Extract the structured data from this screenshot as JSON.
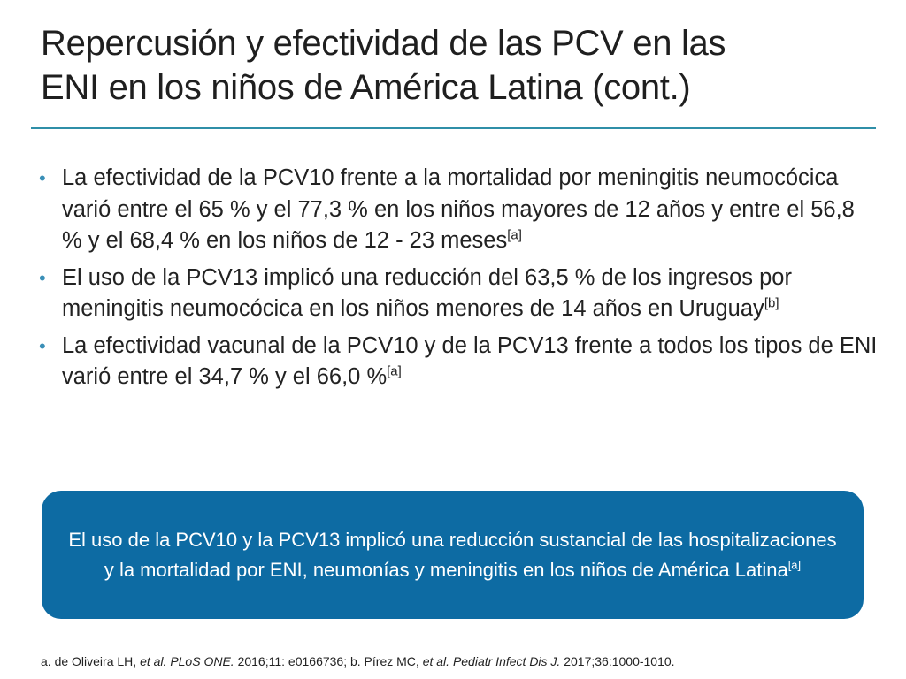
{
  "title": {
    "line1": "Repercusión y efectividad de las PCV en las",
    "line2": "ENI en los niños de América Latina (cont.)"
  },
  "bullet_marker": "•",
  "bullets": [
    {
      "text": "La efectividad de la PCV10 frente a la mortalidad por meningitis neumocócica varió entre el 65 % y el 77,3 % en los niños mayores de 12 años y entre el 56,8 % y el 68,4 % en los niños de 12 - 23 meses",
      "ref": "[a]"
    },
    {
      "text": "El uso de la PCV13 implicó una reducción del 63,5 % de los ingresos por meningitis neumocócica en los niños menores de 14 años en Uruguay",
      "ref": "[b]"
    },
    {
      "text": "La efectividad vacunal de la PCV10 y de la PCV13 frente a todos los tipos de ENI varió entre el 34,7 % y el 66,0 %",
      "ref": "[a]"
    }
  ],
  "callout": {
    "text": "El uso de la PCV10 y la PCV13 implicó una reducción sustancial de las hospitalizaciones y la mortalidad por ENI, neumonías y meningitis en los niños de América Latina",
    "ref": "[a]"
  },
  "references": {
    "a_prefix": "a. de Oliveira LH, ",
    "a_etal": "et al.",
    "a_space": " ",
    "a_journal": "PLoS ONE.",
    "a_detail": " 2016;11: e0166736; b. Pírez MC, ",
    "b_etal": "et al.",
    "b_space": " ",
    "b_journal": "Pediatr Infect Dis J.",
    "b_detail": " 2017;36:1000-1010."
  },
  "colors": {
    "title_rule": "#2f8fa8",
    "bullet_marker": "#3a8fb7",
    "callout_background": "#0d6ba3",
    "callout_text": "#ffffff"
  }
}
